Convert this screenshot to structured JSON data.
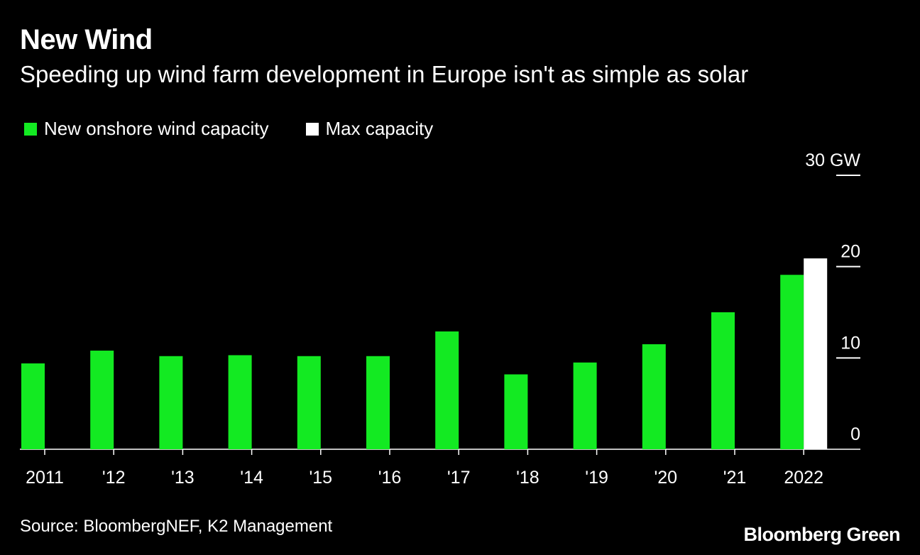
{
  "header": {
    "title": "New Wind",
    "subtitle": "Speeding up wind farm development in Europe isn't as simple as solar"
  },
  "legend": {
    "items": [
      {
        "label": "New onshore wind capacity",
        "color": "#13ea22"
      },
      {
        "label": "Max capacity",
        "color": "#ffffff"
      }
    ]
  },
  "footer": {
    "source": "Source: BloombergNEF, K2 Management",
    "brand": "Bloomberg Green"
  },
  "chart_data": {
    "type": "bar",
    "title": "New Wind",
    "subtitle": "Speeding up wind farm development in Europe isn't as simple as solar",
    "categories": [
      "2011",
      "'12",
      "'13",
      "'14",
      "'15",
      "'16",
      "'17",
      "'18",
      "'19",
      "'20",
      "'21",
      "2022"
    ],
    "series": [
      {
        "name": "New onshore wind capacity",
        "color": "#13ea22",
        "values": [
          9.4,
          10.8,
          10.2,
          10.3,
          10.2,
          10.2,
          12.9,
          8.2,
          9.5,
          11.5,
          15.0,
          19.1
        ]
      },
      {
        "name": "Max capacity",
        "color": "#ffffff",
        "values": [
          null,
          null,
          null,
          null,
          null,
          null,
          null,
          null,
          null,
          null,
          null,
          20.9
        ]
      }
    ],
    "ylim": [
      0,
      30
    ],
    "yticks": [
      0,
      10,
      20,
      30
    ],
    "ytick_labels": [
      "0",
      "10",
      "20",
      "30 GW"
    ],
    "yaxis_position": "right",
    "xlabel": "",
    "ylabel": "GW",
    "legend_position": "top-left"
  }
}
